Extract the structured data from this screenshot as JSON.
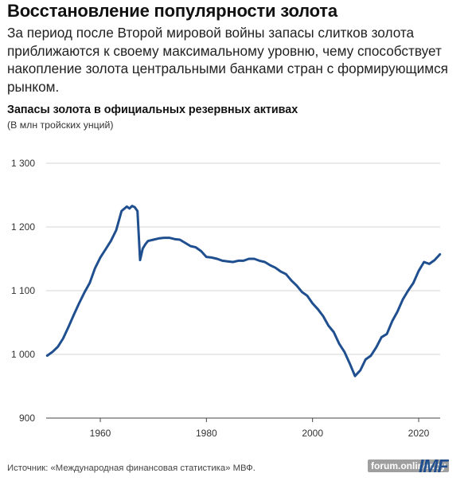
{
  "header": {
    "title": "Восстановление популярности золота",
    "subtitle": "За период после Второй мировой войны запасы слитков золота приближаются к своему максимальному уровню, чему способствует накопление золота центральными банками стран с формирующимся рынком."
  },
  "footer": {
    "source": "Источник: «Международная финансовая статистика» МВФ.",
    "watermark": "forum.onliner.by",
    "logo": "IMF"
  },
  "chart_data": {
    "type": "line",
    "title": "Запасы золота в официальных резервных активах",
    "subtitle": "(В млн тройских унций)",
    "xlabel": "",
    "ylabel": "",
    "ylim": [
      900,
      1300
    ],
    "xlim": [
      1950,
      2025
    ],
    "yticks": [
      900,
      1000,
      1100,
      1200,
      1300
    ],
    "ytick_labels": [
      "900",
      "1 000",
      "1 100",
      "1 200",
      "1 300"
    ],
    "xticks": [
      1960,
      1980,
      2000,
      2020
    ],
    "grid": true,
    "color": "#1f4f8f",
    "series": [
      {
        "x": [
          1950,
          1951,
          1952,
          1953,
          1954,
          1955,
          1956,
          1957,
          1958,
          1959,
          1960,
          1961,
          1962,
          1963,
          1964,
          1965,
          1965.5,
          1966,
          1966.5,
          1967,
          1967.5,
          1968,
          1968.5,
          1969,
          1970,
          1971,
          1972,
          1973,
          1974,
          1975,
          1976,
          1977,
          1978,
          1979,
          1980,
          1981,
          1982,
          1983,
          1984,
          1985,
          1986,
          1987,
          1988,
          1989,
          1990,
          1991,
          1992,
          1993,
          1994,
          1995,
          1996,
          1997,
          1998,
          1999,
          2000,
          2001,
          2002,
          2003,
          2004,
          2005,
          2006,
          2007,
          2008,
          2009,
          2010,
          2011,
          2012,
          2013,
          2014,
          2015,
          2016,
          2017,
          2018,
          2019,
          2020,
          2021,
          2022,
          2023,
          2024
        ],
        "y": [
          998,
          1004,
          1012,
          1025,
          1043,
          1062,
          1080,
          1097,
          1112,
          1135,
          1152,
          1165,
          1178,
          1195,
          1225,
          1232,
          1229,
          1233,
          1231,
          1225,
          1148,
          1166,
          1173,
          1178,
          1180,
          1182,
          1183,
          1183,
          1181,
          1180,
          1175,
          1170,
          1168,
          1162,
          1153,
          1152,
          1150,
          1147,
          1146,
          1145,
          1147,
          1147,
          1150,
          1150,
          1147,
          1145,
          1140,
          1136,
          1130,
          1126,
          1116,
          1108,
          1098,
          1092,
          1080,
          1071,
          1060,
          1045,
          1035,
          1017,
          1004,
          986,
          966,
          975,
          992,
          998,
          1011,
          1027,
          1032,
          1052,
          1067,
          1086,
          1100,
          1112,
          1131,
          1145,
          1142,
          1148,
          1157
        ]
      }
    ]
  }
}
